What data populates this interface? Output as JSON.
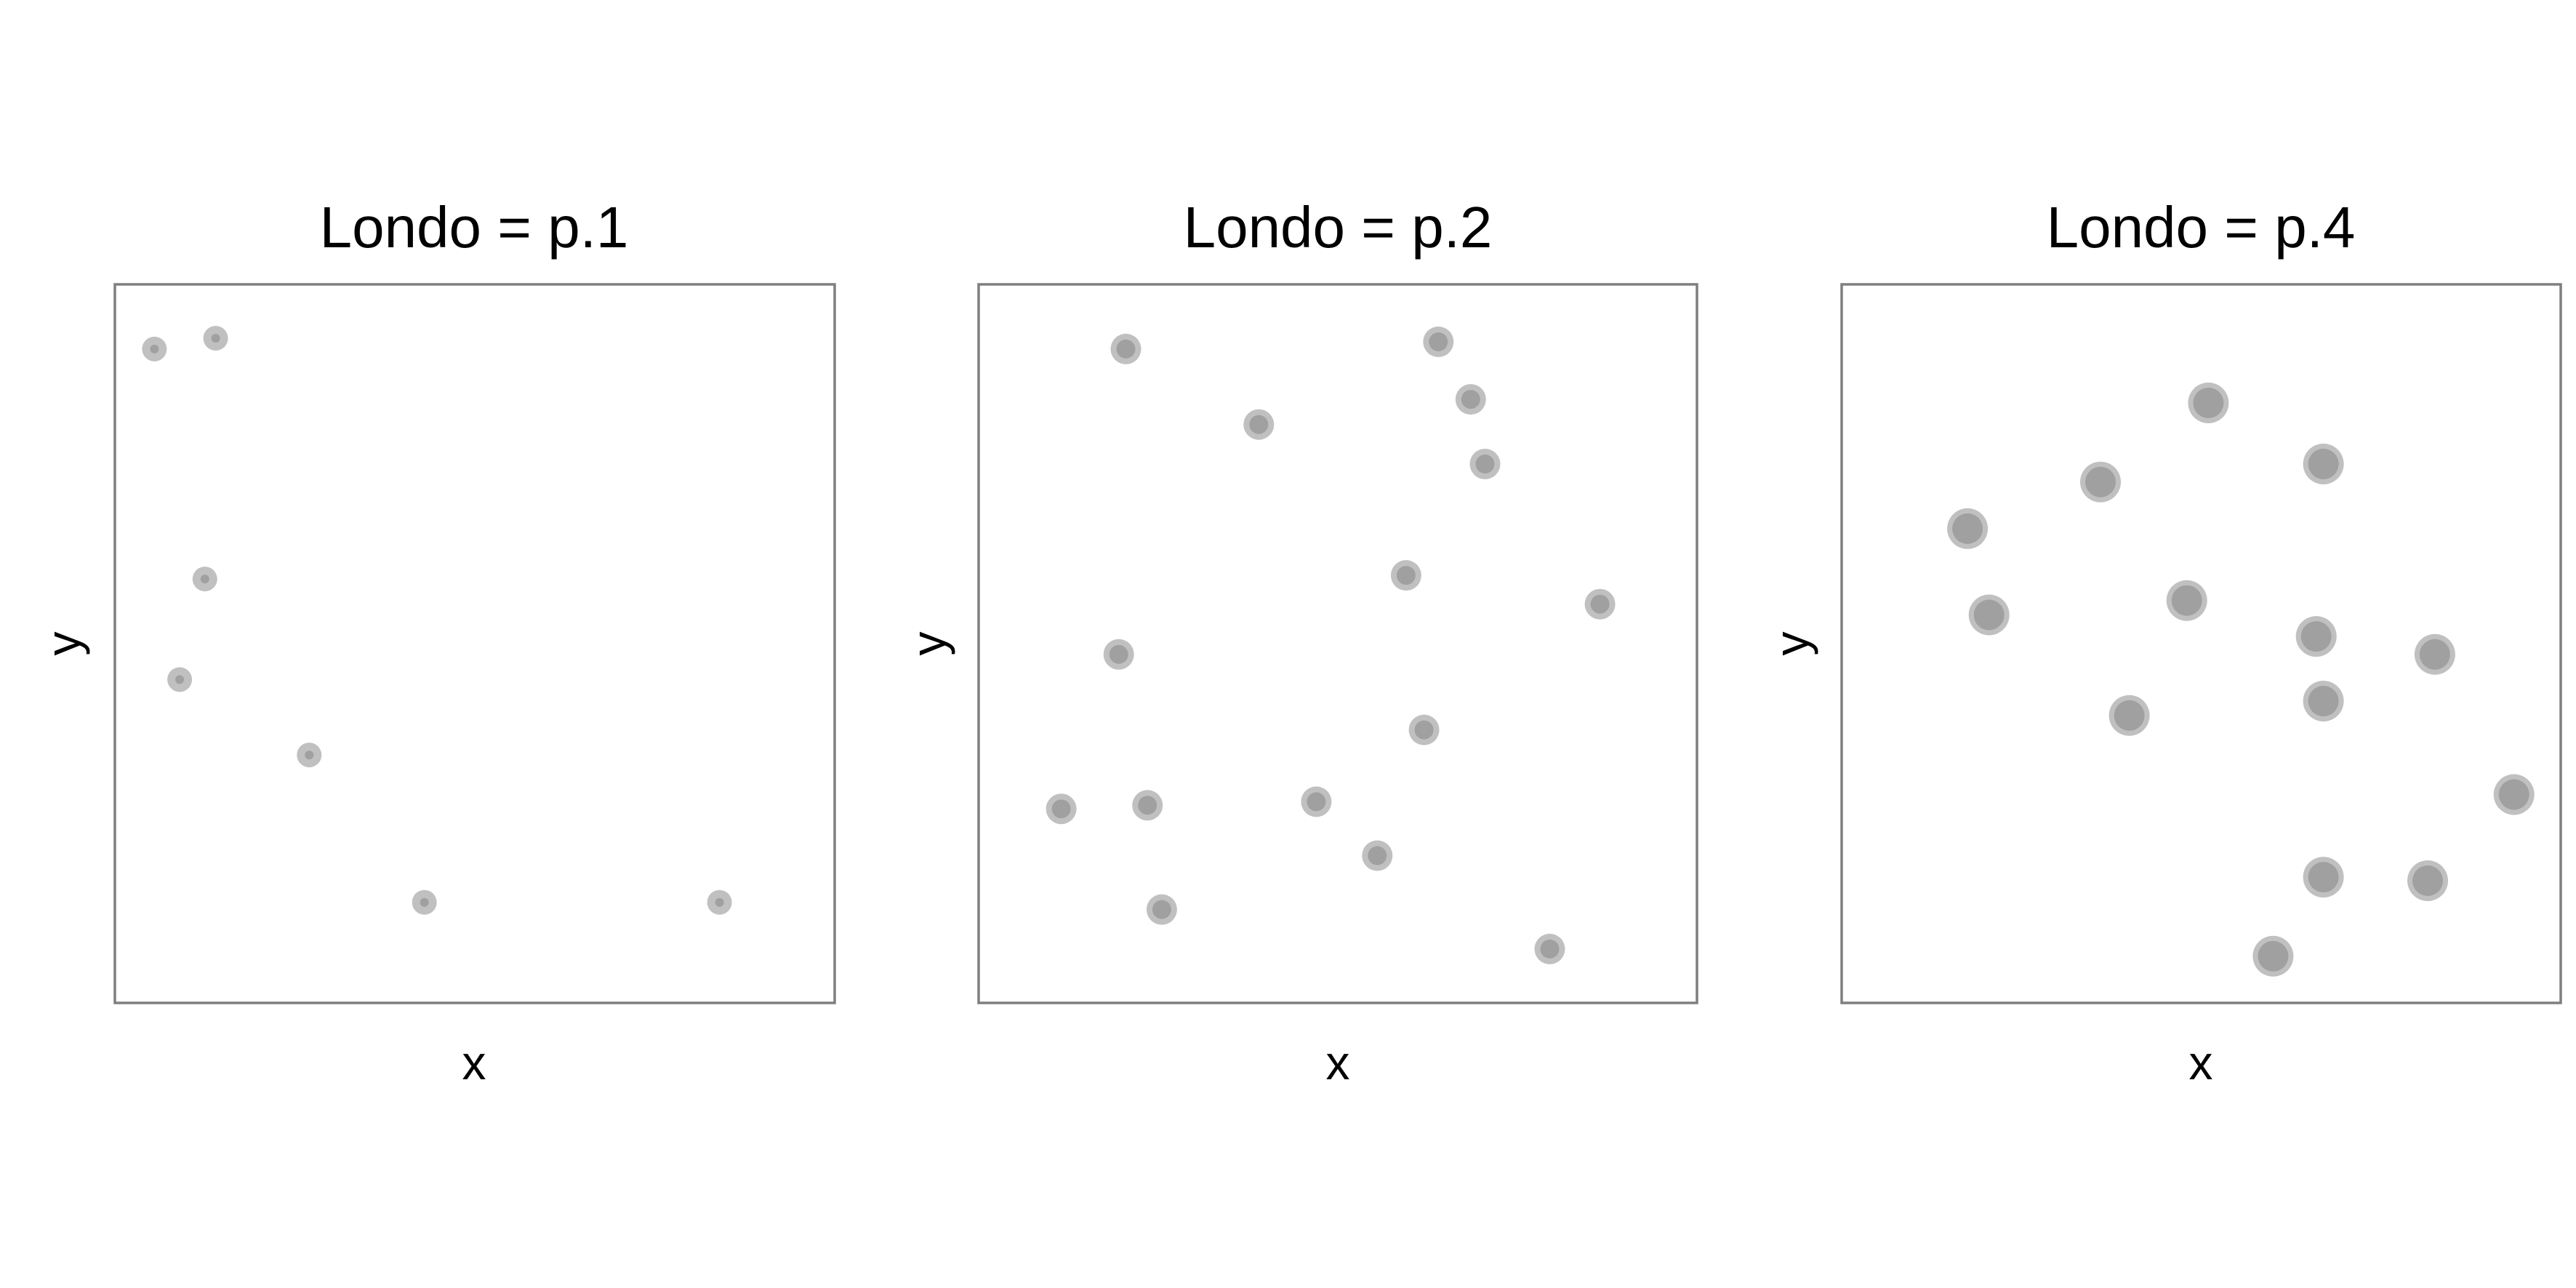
{
  "colors": {
    "background": "#ffffff",
    "panel_border": "#7f7f7f",
    "marker_outer": "#c0c0c0",
    "marker_inner": "#a0a0a0"
  },
  "chart_data": [
    {
      "type": "scatter",
      "title": "Londo = p.1",
      "xlabel": "x",
      "ylabel": "y",
      "xlim": [
        0,
        1
      ],
      "ylim": [
        0,
        1
      ],
      "grid": false,
      "marker_size": "small",
      "points": [
        {
          "x": 0.055,
          "y": 0.91
        },
        {
          "x": 0.14,
          "y": 0.925
        },
        {
          "x": 0.125,
          "y": 0.59
        },
        {
          "x": 0.09,
          "y": 0.45
        },
        {
          "x": 0.27,
          "y": 0.345
        },
        {
          "x": 0.43,
          "y": 0.14
        },
        {
          "x": 0.84,
          "y": 0.14
        }
      ]
    },
    {
      "type": "scatter",
      "title": "Londo = p.2",
      "xlabel": "x",
      "ylabel": "y",
      "xlim": [
        0,
        1
      ],
      "ylim": [
        0,
        1
      ],
      "grid": false,
      "marker_size": "medium",
      "points": [
        {
          "x": 0.205,
          "y": 0.91
        },
        {
          "x": 0.64,
          "y": 0.92
        },
        {
          "x": 0.685,
          "y": 0.84
        },
        {
          "x": 0.39,
          "y": 0.805
        },
        {
          "x": 0.705,
          "y": 0.75
        },
        {
          "x": 0.595,
          "y": 0.595
        },
        {
          "x": 0.865,
          "y": 0.555
        },
        {
          "x": 0.195,
          "y": 0.485
        },
        {
          "x": 0.62,
          "y": 0.38
        },
        {
          "x": 0.115,
          "y": 0.27
        },
        {
          "x": 0.235,
          "y": 0.275
        },
        {
          "x": 0.47,
          "y": 0.28
        },
        {
          "x": 0.555,
          "y": 0.205
        },
        {
          "x": 0.255,
          "y": 0.13
        },
        {
          "x": 0.795,
          "y": 0.075
        }
      ]
    },
    {
      "type": "scatter",
      "title": "Londo = p.4",
      "xlabel": "x",
      "ylabel": "y",
      "xlim": [
        0,
        1
      ],
      "ylim": [
        0,
        1
      ],
      "grid": false,
      "marker_size": "large",
      "points": [
        {
          "x": 0.51,
          "y": 0.835
        },
        {
          "x": 0.67,
          "y": 0.75
        },
        {
          "x": 0.36,
          "y": 0.725
        },
        {
          "x": 0.175,
          "y": 0.66
        },
        {
          "x": 0.205,
          "y": 0.54
        },
        {
          "x": 0.48,
          "y": 0.56
        },
        {
          "x": 0.66,
          "y": 0.51
        },
        {
          "x": 0.825,
          "y": 0.485
        },
        {
          "x": 0.67,
          "y": 0.42
        },
        {
          "x": 0.4,
          "y": 0.4
        },
        {
          "x": 0.935,
          "y": 0.29
        },
        {
          "x": 0.67,
          "y": 0.175
        },
        {
          "x": 0.815,
          "y": 0.17
        },
        {
          "x": 0.6,
          "y": 0.065
        }
      ]
    }
  ]
}
